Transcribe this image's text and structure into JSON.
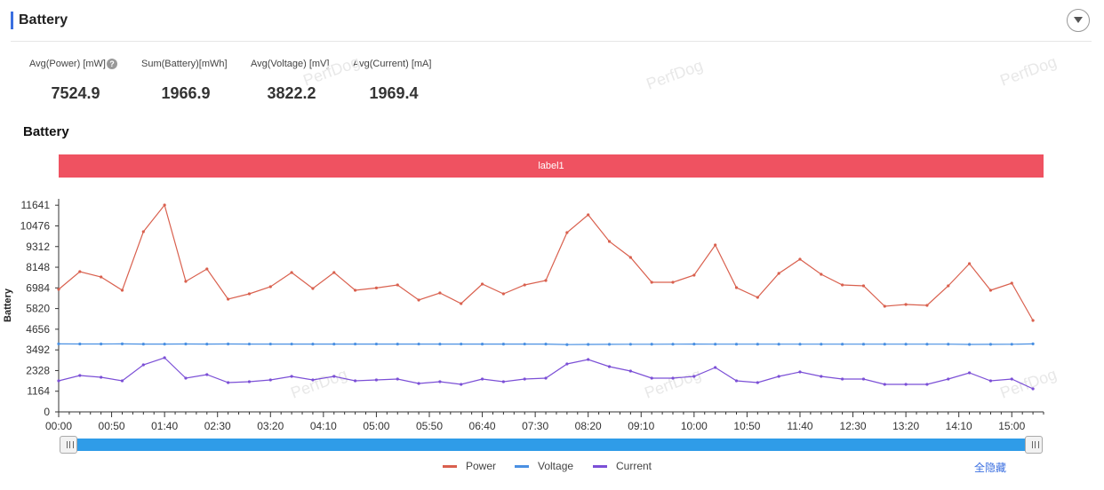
{
  "header": {
    "title": "Battery"
  },
  "stats": [
    {
      "label": "Avg(Power) [mW]",
      "value": "7524.9",
      "help": "?"
    },
    {
      "label": "Sum(Battery)[mWh]",
      "value": "1966.9"
    },
    {
      "label": "Avg(Voltage) [mV]",
      "value": "3822.2"
    },
    {
      "label": "Avg(Current) [mA]",
      "value": "1969.4"
    }
  ],
  "watermark": "PerfDog",
  "chart": {
    "title": "Battery",
    "label_bar": "label1",
    "hide_all": "全隐藏"
  },
  "colors": {
    "accent": "#3b6fe0",
    "label_bar": "#ef5261",
    "slider": "#2f9ce8"
  },
  "chart_data": {
    "type": "line",
    "title": "Battery",
    "ylabel": "Battery",
    "xlabel": "",
    "ylim": [
      0,
      12000
    ],
    "yticks": [
      0,
      1164,
      2328,
      3492,
      4656,
      5820,
      6984,
      8148,
      9312,
      10476,
      11641
    ],
    "xtick_labels": [
      "00:00",
      "00:50",
      "01:40",
      "02:30",
      "03:20",
      "04:10",
      "05:00",
      "05:50",
      "06:40",
      "07:30",
      "08:20",
      "09:10",
      "10:00",
      "10:50",
      "11:40",
      "12:30",
      "13:20",
      "14:10",
      "15:00"
    ],
    "xtick_seconds": [
      0,
      50,
      100,
      150,
      200,
      250,
      300,
      350,
      400,
      450,
      500,
      550,
      600,
      650,
      700,
      750,
      800,
      850,
      900
    ],
    "x_end": 930,
    "x_seconds": [
      0,
      20,
      40,
      60,
      80,
      100,
      120,
      140,
      160,
      180,
      200,
      220,
      240,
      260,
      280,
      300,
      320,
      340,
      360,
      380,
      400,
      420,
      440,
      460,
      480,
      500,
      520,
      540,
      560,
      580,
      600,
      620,
      640,
      660,
      680,
      700,
      720,
      740,
      760,
      780,
      800,
      820,
      840,
      860,
      880,
      900,
      920
    ],
    "legend": [
      "Power",
      "Voltage",
      "Current"
    ],
    "series": [
      {
        "name": "Power",
        "color": "#d9604e",
        "values": [
          6900,
          7900,
          7600,
          6850,
          10150,
          11650,
          7350,
          8050,
          6350,
          6650,
          7050,
          7850,
          6950,
          7850,
          6850,
          6980,
          7150,
          6300,
          6700,
          6100,
          7200,
          6650,
          7150,
          7400,
          10100,
          11100,
          9600,
          8700,
          7300,
          7300,
          7700,
          9400,
          7000,
          6450,
          7800,
          8600,
          7750,
          7150,
          7100,
          5950,
          6050,
          6000,
          7100,
          8350,
          6850,
          7250,
          5150
        ]
      },
      {
        "name": "Voltage",
        "color": "#4a90e2",
        "values": [
          3830,
          3825,
          3825,
          3830,
          3820,
          3820,
          3825,
          3820,
          3825,
          3822,
          3822,
          3822,
          3820,
          3818,
          3822,
          3822,
          3820,
          3822,
          3820,
          3822,
          3820,
          3818,
          3822,
          3820,
          3790,
          3800,
          3805,
          3810,
          3812,
          3815,
          3818,
          3815,
          3815,
          3815,
          3815,
          3815,
          3815,
          3815,
          3815,
          3815,
          3815,
          3815,
          3815,
          3800,
          3805,
          3810,
          3830
        ]
      },
      {
        "name": "Current",
        "color": "#7b4fd6",
        "values": [
          1750,
          2050,
          1950,
          1750,
          2650,
          3050,
          1900,
          2100,
          1650,
          1700,
          1800,
          2000,
          1800,
          2000,
          1750,
          1800,
          1850,
          1600,
          1700,
          1550,
          1850,
          1700,
          1850,
          1900,
          2700,
          2950,
          2550,
          2300,
          1900,
          1900,
          2000,
          2500,
          1750,
          1650,
          2000,
          2250,
          2000,
          1850,
          1850,
          1550,
          1550,
          1550,
          1850,
          2200,
          1750,
          1850,
          1300
        ]
      }
    ]
  }
}
